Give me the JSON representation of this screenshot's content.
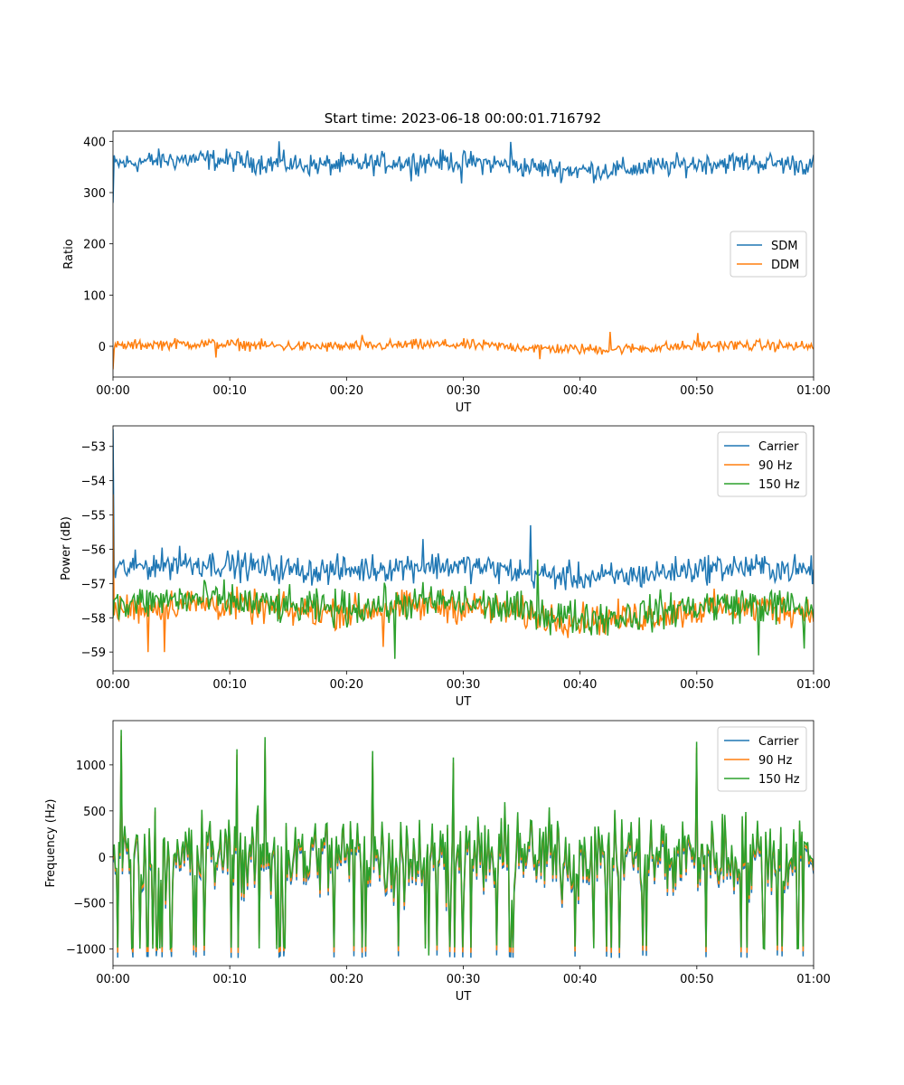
{
  "figure": {
    "title": "Start time: 2023-06-18 00:00:01.716792"
  },
  "colors": {
    "blue": "#1f77b4",
    "orange": "#ff7f0e",
    "green": "#2ca02c"
  },
  "chart_data": [
    {
      "type": "line",
      "panel": "ratio",
      "title": "Start time: 2023-06-18 00:00:01.716792",
      "xlabel": "UT",
      "ylabel": "Ratio",
      "xlim_minutes": [
        0,
        60
      ],
      "xticks": [
        "00:00",
        "00:10",
        "00:20",
        "00:30",
        "00:40",
        "00:50",
        "01:00"
      ],
      "ylim": [
        -60,
        420
      ],
      "yticks": [
        0,
        100,
        200,
        300,
        400
      ],
      "legend": {
        "position": "center-right",
        "entries": [
          "SDM",
          "DDM"
        ]
      },
      "series": [
        {
          "name": "SDM",
          "color": "#1f77b4",
          "first": 280,
          "mean": 355,
          "amp": 18,
          "spikes": [
            [
              14.2,
              400
            ],
            [
              34.1,
              399
            ],
            [
              25.5,
              322
            ],
            [
              29.8,
              318
            ]
          ],
          "values": []
        },
        {
          "name": "DDM",
          "color": "#ff7f0e",
          "first": -45,
          "mean": 0,
          "amp": 9,
          "spikes": [
            [
              42.6,
              28
            ],
            [
              50.1,
              26
            ],
            [
              21.3,
              22
            ],
            [
              36.6,
              -25
            ],
            [
              8.8,
              -22
            ]
          ],
          "values": []
        }
      ]
    },
    {
      "type": "line",
      "panel": "power",
      "xlabel": "UT",
      "ylabel": "Power (dB)",
      "xlim_minutes": [
        0,
        60
      ],
      "xticks": [
        "00:00",
        "00:10",
        "00:20",
        "00:30",
        "00:40",
        "00:50",
        "01:00"
      ],
      "ylim": [
        -59.55,
        -52.4
      ],
      "yticks": [
        -59,
        -58,
        -57,
        -56,
        -55,
        -54,
        -53
      ],
      "legend": {
        "position": "top-right",
        "entries": [
          "Carrier",
          "90 Hz",
          "150 Hz"
        ]
      },
      "series": [
        {
          "name": "Carrier",
          "color": "#1f77b4",
          "first": -52.5,
          "mean": -56.6,
          "amp": 0.35,
          "spikes": [
            [
              35.8,
              -55.3
            ],
            [
              5.7,
              -55.9
            ],
            [
              26.5,
              -55.7
            ]
          ],
          "values": []
        },
        {
          "name": "90 Hz",
          "color": "#ff7f0e",
          "first": -54.4,
          "mean": -57.8,
          "amp": 0.4,
          "spikes": [
            [
              3.0,
              -59.0
            ],
            [
              4.4,
              -59.0
            ],
            [
              23.1,
              -58.85
            ]
          ],
          "values": []
        },
        {
          "name": "150 Hz",
          "color": "#2ca02c",
          "first": -58.0,
          "mean": -57.7,
          "amp": 0.45,
          "spikes": [
            [
              24.1,
              -59.2
            ],
            [
              55.3,
              -59.1
            ],
            [
              59.2,
              -58.9
            ],
            [
              36.4,
              -56.3
            ]
          ],
          "values": []
        }
      ]
    },
    {
      "type": "line",
      "panel": "frequency",
      "xlabel": "UT",
      "ylabel": "Frequency (Hz)",
      "xlim_minutes": [
        0,
        60
      ],
      "xticks": [
        "00:00",
        "00:10",
        "00:20",
        "00:30",
        "00:40",
        "00:50",
        "01:00"
      ],
      "ylim": [
        -1180,
        1480
      ],
      "yticks": [
        -1000,
        -500,
        0,
        500,
        1000
      ],
      "legend": {
        "position": "top-right",
        "entries": [
          "Carrier",
          "90 Hz",
          "150 Hz"
        ]
      },
      "series": [
        {
          "name": "Carrier",
          "color": "#1f77b4",
          "offset": -60,
          "values": []
        },
        {
          "name": "90 Hz",
          "color": "#ff7f0e",
          "offset": -30,
          "values": []
        },
        {
          "name": "150 Hz",
          "color": "#2ca02c",
          "offset": 0,
          "values": []
        }
      ],
      "base": {
        "first": 0,
        "spikes": [
          [
            0.7,
            1380
          ],
          [
            13.0,
            1300
          ],
          [
            50.0,
            1250
          ],
          [
            22.2,
            1150
          ],
          [
            10.6,
            1170
          ],
          [
            29.1,
            1080
          ],
          [
            27.0,
            -1070
          ]
        ]
      }
    }
  ]
}
